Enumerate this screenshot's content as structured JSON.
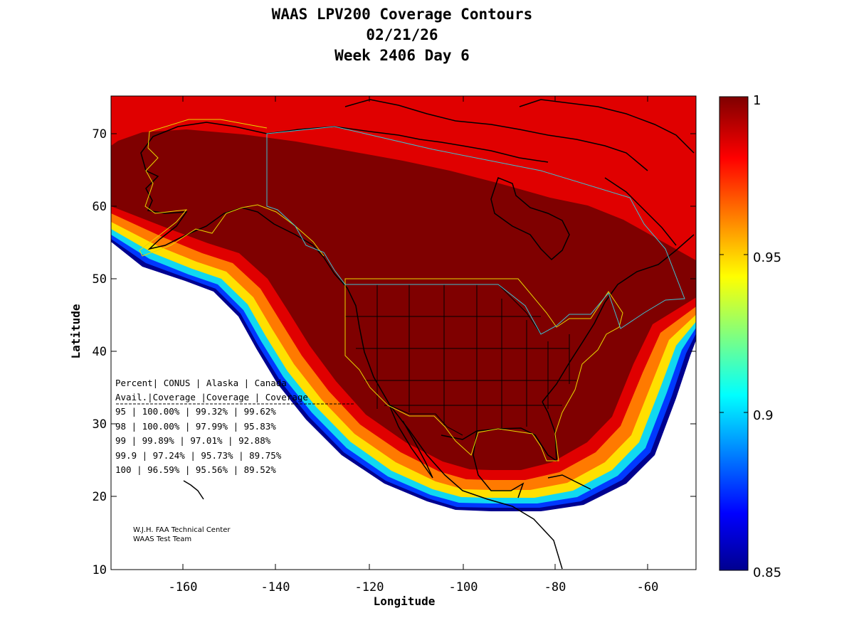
{
  "title": {
    "line1": "WAAS LPV200 Coverage Contours",
    "line2": "02/21/26",
    "line3": "Week 2406 Day 6"
  },
  "axes": {
    "xlabel": "Longitude",
    "ylabel": "Latitude",
    "xticks": [
      "-160",
      "-140",
      "-120",
      "-100",
      "-80",
      "-60"
    ],
    "yticks": [
      "10",
      "20",
      "30",
      "40",
      "50",
      "60",
      "70"
    ]
  },
  "colorbar": {
    "ticks": [
      "0.85",
      "0.9",
      "0.95",
      "1"
    ]
  },
  "stats_table": {
    "header1": "Percent| CONUS   | Alaska  | Canada",
    "header2": " Avail.|Coverage |Coverage | Coverage",
    "rows": [
      "  95   | 100.00%  | 99.32% | 99.62%",
      "  98   | 100.00%  | 97.99% | 95.83%",
      "  99   | 99.89%  | 97.01% | 92.88%",
      "99.9   | 97.24%  | 95.73% | 89.75%",
      " 100   | 96.59%  | 95.56% | 89.52%"
    ]
  },
  "credit": {
    "line1": "W.J.H. FAA Technical Center",
    "line2": "WAAS Test Team"
  },
  "chart_data": {
    "type": "heatmap",
    "title": "WAAS LPV200 Coverage Contours",
    "xlabel": "Longitude",
    "ylabel": "Latitude",
    "xlim": [
      -175,
      -50
    ],
    "ylim": [
      10,
      75
    ],
    "colorbar_range": [
      0.85,
      1
    ],
    "colors": {
      "full": "#7f0000",
      "red": "#e00000",
      "orange": "#ff7a00",
      "yellow": "#ffe000",
      "cyan": "#10d8f0",
      "blue": "#0038ff",
      "navy": "#00008f",
      "boundary_us": "#e8d800",
      "boundary_ca": "#40c0d0"
    }
  }
}
